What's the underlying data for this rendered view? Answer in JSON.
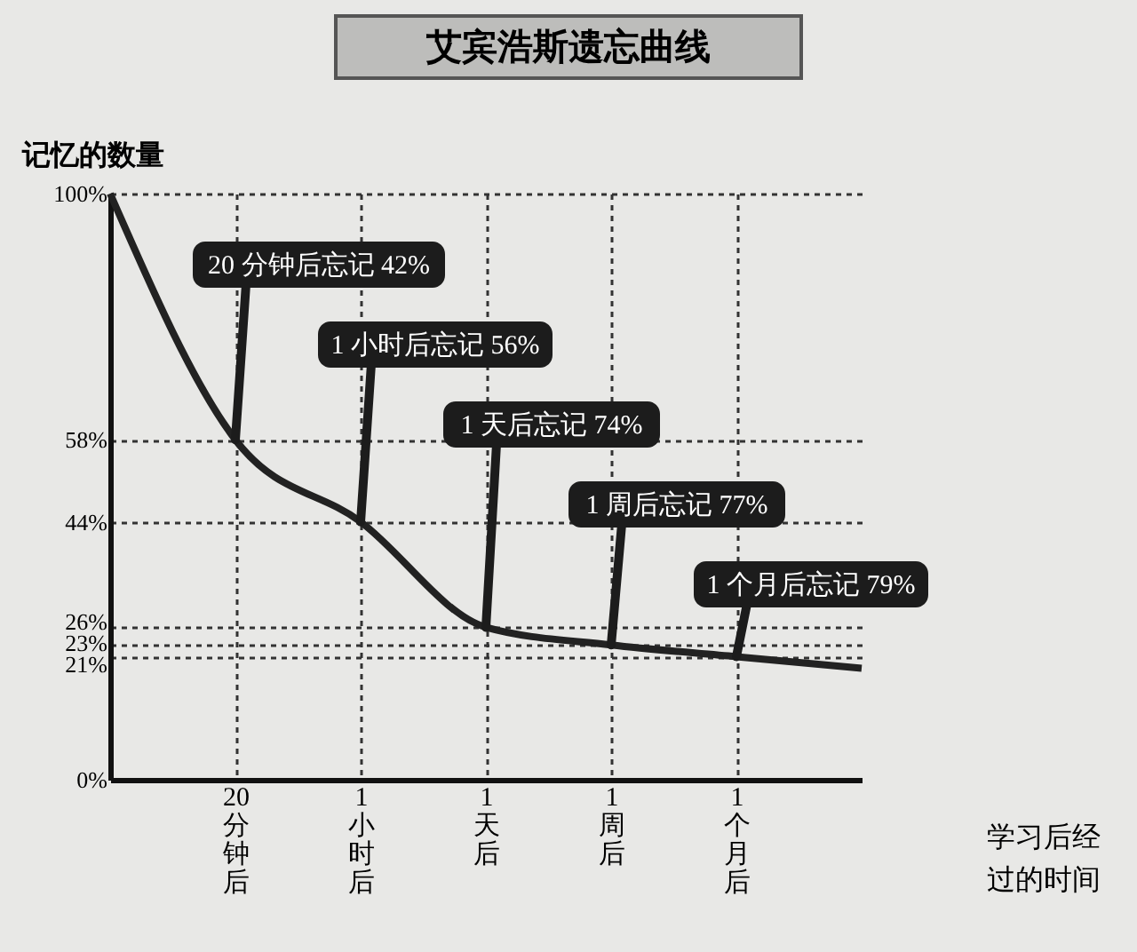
{
  "chart_data": {
    "type": "line",
    "title": "艾宾浩斯遗忘曲线",
    "ylabel": "记忆的数量",
    "xlabel": "学习后经过的时间",
    "categories": [
      null,
      "20分钟后",
      "1小时后",
      "1天后",
      "1周后",
      "1个月后",
      null
    ],
    "series": [
      {
        "color": "#222222",
        "values": [
          100,
          58,
          44,
          26,
          23,
          21,
          19
        ]
      }
    ],
    "ylim": [
      0,
      100
    ],
    "yticks": [
      {
        "value": 0,
        "label": "0%"
      },
      {
        "value": 21,
        "label": "21%"
      },
      {
        "value": 23,
        "label": "23%"
      },
      {
        "value": 26,
        "label": "26%"
      },
      {
        "value": 44,
        "label": "44%"
      },
      {
        "value": 58,
        "label": "58%"
      },
      {
        "value": 100,
        "label": "100%"
      }
    ],
    "grid": true,
    "annotations": [
      {
        "text": "20 分钟后忘记 42%",
        "x": "20分钟后",
        "y": 58
      },
      {
        "text": "1 小时后忘记 56%",
        "x": "1小时后",
        "y": 44
      },
      {
        "text": "1 天后忘记 74%",
        "x": "1天后",
        "y": 26
      },
      {
        "text": "1 周后忘记 77%",
        "x": "1周后",
        "y": 23
      },
      {
        "text": "1 个月后忘记 79%",
        "x": "1个月后",
        "y": 21
      }
    ]
  }
}
